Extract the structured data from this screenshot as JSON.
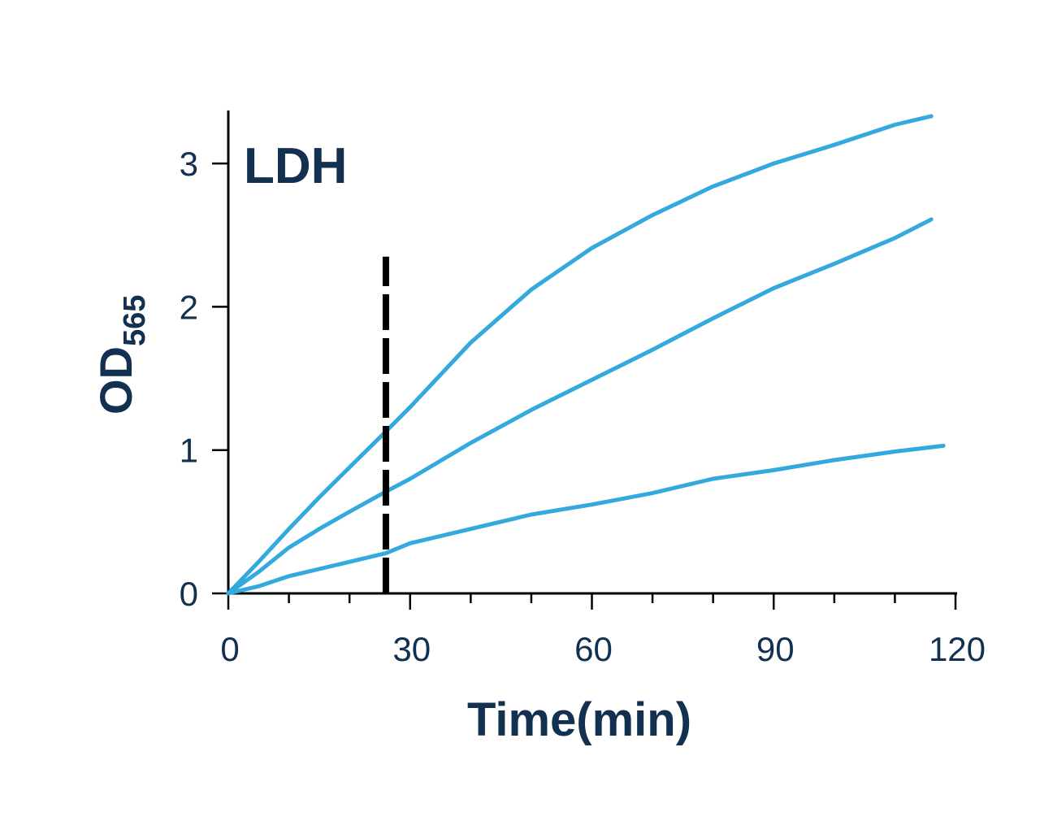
{
  "chart_data": {
    "type": "line",
    "title": "LDH",
    "xlabel": "Time(min)",
    "ylabel": "OD",
    "ylabel_subscript": "565",
    "xlim": [
      0,
      120
    ],
    "ylim": [
      0,
      3.37
    ],
    "xticks": [
      "0",
      "30",
      "60",
      "90",
      "120"
    ],
    "xtick_values": [
      0,
      30,
      60,
      90,
      120
    ],
    "x_minor_step": 10,
    "yticks": [
      "0",
      "1",
      "2",
      "3"
    ],
    "ytick_values": [
      0,
      1,
      2,
      3
    ],
    "grid": false,
    "line_color": "#33a9de",
    "text_color": "#12304f",
    "vertical_marker": {
      "x": 26,
      "y_top": 2.35,
      "style": "dashed",
      "color": "#000000"
    },
    "series": [
      {
        "x": [
          0,
          5,
          10,
          15,
          20,
          26,
          30,
          40,
          50,
          60,
          70,
          80,
          90,
          100,
          110,
          116
        ],
        "y": [
          0,
          0.22,
          0.45,
          0.67,
          0.88,
          1.13,
          1.3,
          1.75,
          2.12,
          2.41,
          2.64,
          2.84,
          3.0,
          3.13,
          3.27,
          3.33
        ]
      },
      {
        "x": [
          0,
          5,
          10,
          15,
          20,
          26,
          30,
          40,
          50,
          60,
          70,
          80,
          90,
          100,
          110,
          116
        ],
        "y": [
          0,
          0.15,
          0.32,
          0.45,
          0.57,
          0.71,
          0.8,
          1.05,
          1.28,
          1.49,
          1.7,
          1.92,
          2.13,
          2.3,
          2.48,
          2.61
        ]
      },
      {
        "x": [
          0,
          5,
          10,
          15,
          20,
          26,
          30,
          40,
          50,
          60,
          70,
          80,
          90,
          100,
          110,
          118
        ],
        "y": [
          0,
          0.05,
          0.12,
          0.17,
          0.22,
          0.28,
          0.35,
          0.45,
          0.55,
          0.62,
          0.7,
          0.8,
          0.86,
          0.93,
          0.99,
          1.03
        ]
      }
    ]
  }
}
